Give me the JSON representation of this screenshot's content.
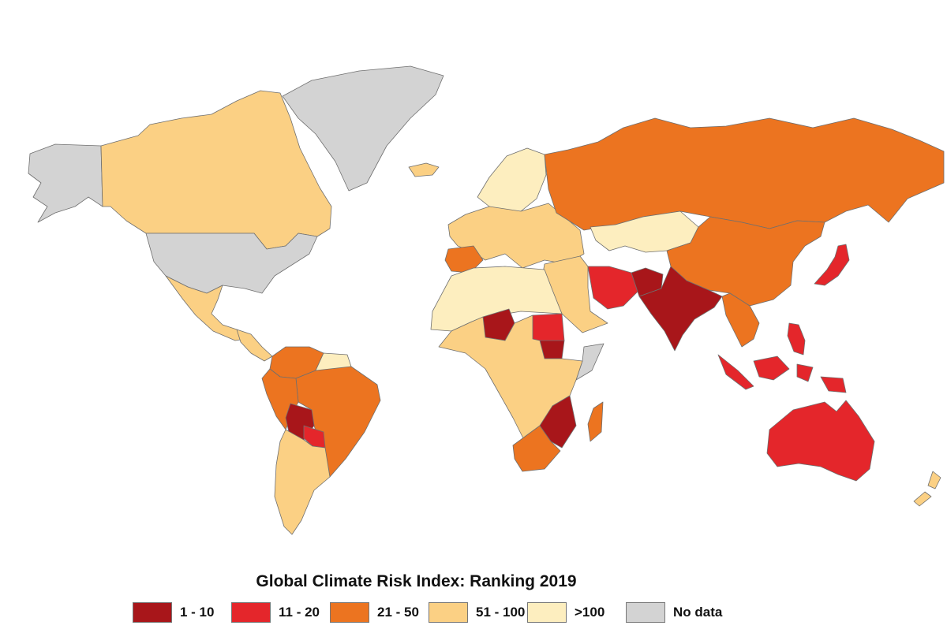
{
  "legend": {
    "title": "Global Climate Risk Index: Ranking 2019",
    "items": [
      {
        "label": "1 - 10",
        "color": "#a8161a"
      },
      {
        "label": "11 - 20",
        "color": "#e4262b"
      },
      {
        "label": "21 - 50",
        "color": "#ec7420"
      },
      {
        "label": "51 - 100",
        "color": "#fbd084"
      },
      {
        "label": ">100",
        "color": "#fdeebf"
      },
      {
        "label": "No data",
        "color": "#d3d3d3"
      }
    ]
  },
  "map": {
    "regions": [
      {
        "name": "alaska",
        "rank_class": "No data"
      },
      {
        "name": "canada",
        "rank_class": "51 - 100"
      },
      {
        "name": "greenland",
        "rank_class": "No data"
      },
      {
        "name": "united-states",
        "rank_class": "No data"
      },
      {
        "name": "mexico",
        "rank_class": "51 - 100"
      },
      {
        "name": "central-america",
        "rank_class": "51 - 100"
      },
      {
        "name": "colombia-venezuela",
        "rank_class": "21 - 50"
      },
      {
        "name": "guianas",
        "rank_class": ">100"
      },
      {
        "name": "brazil",
        "rank_class": "21 - 50"
      },
      {
        "name": "peru-ecuador",
        "rank_class": "21 - 50"
      },
      {
        "name": "bolivia",
        "rank_class": "1 - 10"
      },
      {
        "name": "paraguay",
        "rank_class": "11 - 20"
      },
      {
        "name": "chile-argentina",
        "rank_class": "51 - 100"
      },
      {
        "name": "iceland",
        "rank_class": "51 - 100"
      },
      {
        "name": "scandinavia",
        "rank_class": ">100"
      },
      {
        "name": "europe",
        "rank_class": "51 - 100"
      },
      {
        "name": "iberia",
        "rank_class": "21 - 50"
      },
      {
        "name": "russia",
        "rank_class": "21 - 50"
      },
      {
        "name": "kazakhstan",
        "rank_class": ">100"
      },
      {
        "name": "china",
        "rank_class": "21 - 50"
      },
      {
        "name": "middle-east",
        "rank_class": "51 - 100"
      },
      {
        "name": "iran",
        "rank_class": "11 - 20"
      },
      {
        "name": "afghanistan",
        "rank_class": "1 - 10"
      },
      {
        "name": "india",
        "rank_class": "1 - 10"
      },
      {
        "name": "southeast-asia",
        "rank_class": "21 - 50"
      },
      {
        "name": "japan",
        "rank_class": "11 - 20"
      },
      {
        "name": "philippines",
        "rank_class": "11 - 20"
      },
      {
        "name": "indonesia",
        "rank_class": "11 - 20"
      },
      {
        "name": "australia",
        "rank_class": "11 - 20"
      },
      {
        "name": "new-zealand",
        "rank_class": "51 - 100"
      },
      {
        "name": "north-africa",
        "rank_class": ">100"
      },
      {
        "name": "niger",
        "rank_class": "1 - 10"
      },
      {
        "name": "sudan",
        "rank_class": "11 - 20"
      },
      {
        "name": "south-sudan",
        "rank_class": "1 - 10"
      },
      {
        "name": "somalia",
        "rank_class": "No data"
      },
      {
        "name": "central-africa",
        "rank_class": "51 - 100"
      },
      {
        "name": "mozambique-zimbabwe",
        "rank_class": "1 - 10"
      },
      {
        "name": "madagascar",
        "rank_class": "21 - 50"
      },
      {
        "name": "south-africa",
        "rank_class": "21 - 50"
      }
    ]
  }
}
